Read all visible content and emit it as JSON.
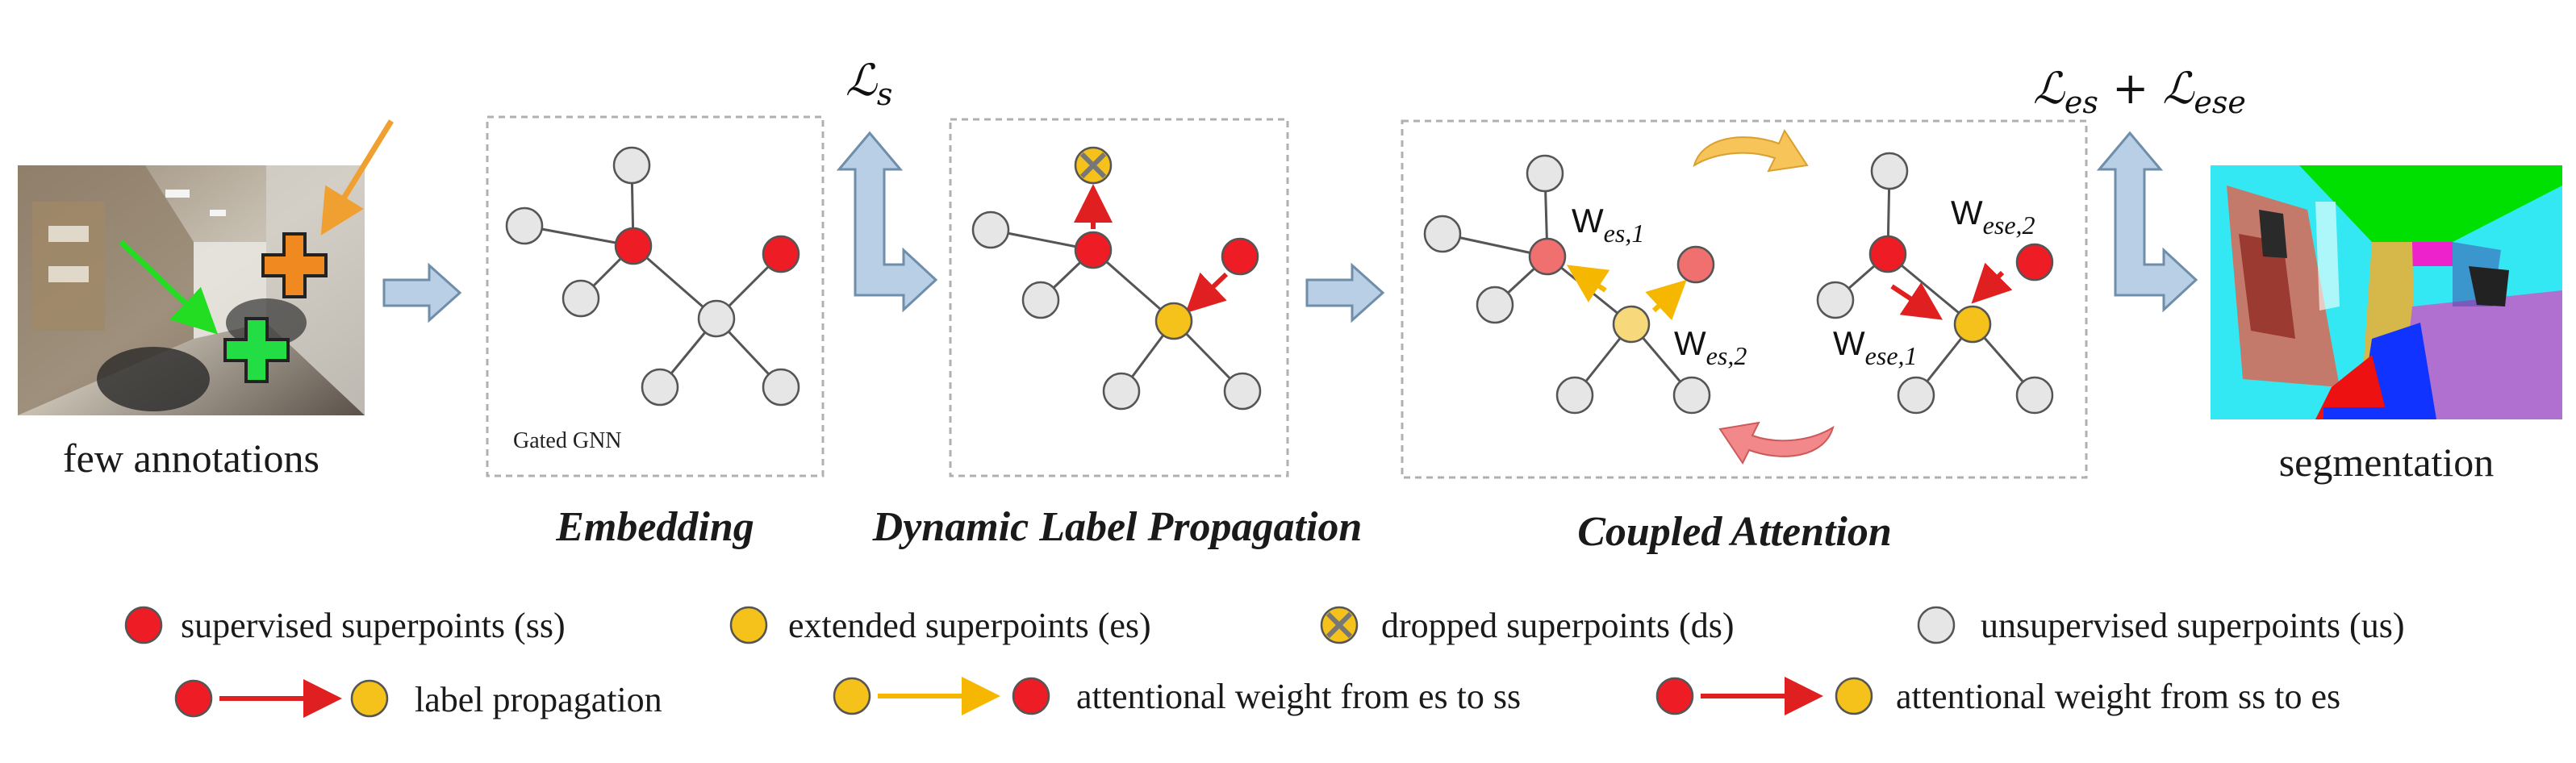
{
  "labels": {
    "few_annotations": "few annotations",
    "segmentation": "segmentation",
    "gated_gnn": "Gated GNN",
    "embedding": "Embedding",
    "dlp": "Dynamic Label Propagation",
    "coupled": "Coupled Attention",
    "loss_s_main": "ℒ",
    "loss_s_sub": "s",
    "loss_es_main": "ℒ",
    "loss_es_sub": "es",
    "loss_plus": " + ",
    "loss_ese_main": "ℒ",
    "loss_ese_sub": "ese"
  },
  "weights": {
    "w_es1_main": "W",
    "w_es1_sub": "es,1",
    "w_es2_main": "W",
    "w_es2_sub": "es,2",
    "w_ese2_main": "W",
    "w_ese2_sub": "ese,2",
    "w_ese1_main": "W",
    "w_ese1_sub": "ese,1"
  },
  "legend": {
    "ss": "supervised superpoints (ss)",
    "es": "extended superpoints (es)",
    "ds": "dropped superpoints (ds)",
    "us": "unsupervised superpoints (us)",
    "label_prop": "label propagation",
    "att_es_ss": "attentional weight from es to ss",
    "att_ss_es": "attentional weight from ss to es"
  },
  "colors": {
    "ss": "#ee1c24",
    "es": "#f5c21b",
    "us": "#e6e6e6",
    "flow_arrow": "#b8cfe6",
    "edge": "#555555",
    "orange_arrow": "#f5b700",
    "red_arrow": "#e02020"
  }
}
